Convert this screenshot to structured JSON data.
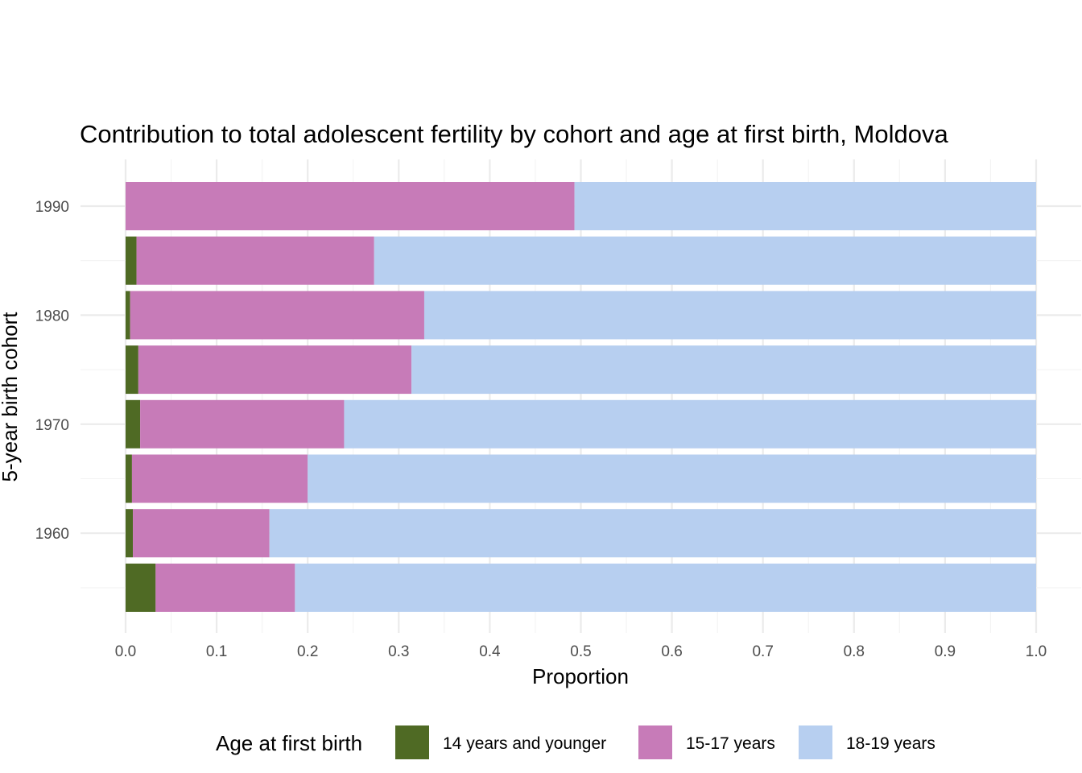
{
  "chart_data": {
    "type": "bar",
    "orientation": "horizontal",
    "stacked": true,
    "title": "Contribution to total adolescent fertility by cohort and age at first birth,  Moldova",
    "xlabel": "Proportion",
    "ylabel": "5-year birth cohort",
    "xlim": [
      0,
      1
    ],
    "x_ticks": [
      "0.0",
      "0.1",
      "0.2",
      "0.3",
      "0.4",
      "0.5",
      "0.6",
      "0.7",
      "0.8",
      "0.9",
      "1.0"
    ],
    "y_ticks": [
      "1960",
      "1970",
      "1980",
      "1990"
    ],
    "categories": [
      1955,
      1960,
      1965,
      1970,
      1975,
      1980,
      1985,
      1990
    ],
    "series": [
      {
        "name": "14 years and younger",
        "color": "#4f6a24",
        "values": [
          0.033,
          0.008,
          0.007,
          0.016,
          0.014,
          0.005,
          0.012,
          0.0
        ]
      },
      {
        "name": "15-17 years",
        "color": "#c77bb8",
        "values": [
          0.153,
          0.15,
          0.193,
          0.224,
          0.3,
          0.323,
          0.261,
          0.493
        ]
      },
      {
        "name": "18-19 years",
        "color": "#b7cff0",
        "values": [
          0.814,
          0.842,
          0.8,
          0.76,
          0.686,
          0.672,
          0.727,
          0.507
        ]
      }
    ],
    "grid": true,
    "legend": {
      "title": "Age at first birth",
      "position": "bottom"
    }
  }
}
